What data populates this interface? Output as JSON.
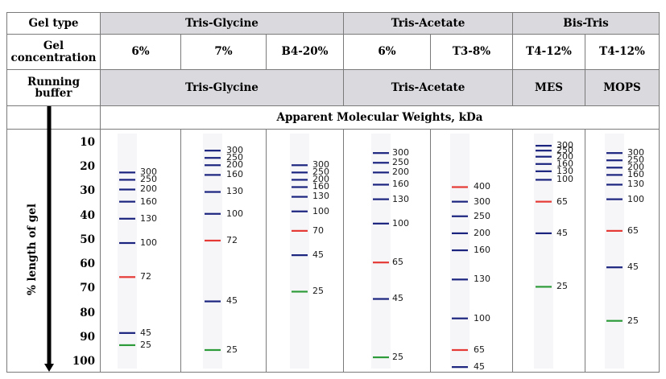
{
  "header": {
    "gel_type_label": "Gel type",
    "gel_conc_label": "Gel\nconcentration",
    "running_buffer_label": "Running\nbuffer",
    "apparent_mw_label": "Apparent Molecular Weights, kDa"
  },
  "gel_types": [
    "Tris-Glycine",
    "Tris-Acetate",
    "Bis-Tris"
  ],
  "columns": [
    {
      "concentration": "6%"
    },
    {
      "concentration": "7%"
    },
    {
      "concentration": "B4-20%"
    },
    {
      "concentration": "6%"
    },
    {
      "concentration": "T3-8%"
    },
    {
      "concentration": "T4-12%"
    },
    {
      "concentration": "T4-12%"
    }
  ],
  "buffers": [
    "Tris-Glycine",
    "Tris-Acetate",
    "MES",
    "MOPS"
  ],
  "colors": {
    "blue": "#1a237e",
    "red": "#e53935",
    "green": "#2e9b3a",
    "header_shade": "#d9d9de",
    "border": "#7a7a7a"
  },
  "chart_data": {
    "type": "gel-ladder",
    "ylabel": "% length of gel",
    "yticks": [
      10,
      20,
      30,
      40,
      50,
      60,
      70,
      80,
      90,
      100
    ],
    "lanes": [
      {
        "gel": "Tris-Glycine 6%",
        "bands": [
          {
            "kda": "300",
            "pos": 22,
            "color": "blue"
          },
          {
            "kda": "250",
            "pos": 25,
            "color": "blue"
          },
          {
            "kda": "200",
            "pos": 29,
            "color": "blue"
          },
          {
            "kda": "160",
            "pos": 34,
            "color": "blue"
          },
          {
            "kda": "130",
            "pos": 41,
            "color": "blue"
          },
          {
            "kda": "100",
            "pos": 51,
            "color": "blue"
          },
          {
            "kda": "72",
            "pos": 65,
            "color": "red"
          },
          {
            "kda": "45",
            "pos": 88,
            "color": "blue"
          },
          {
            "kda": "25",
            "pos": 93,
            "color": "green"
          }
        ]
      },
      {
        "gel": "Tris-Glycine 7%",
        "bands": [
          {
            "kda": "300",
            "pos": 13,
            "color": "blue"
          },
          {
            "kda": "250",
            "pos": 16,
            "color": "blue"
          },
          {
            "kda": "200",
            "pos": 19,
            "color": "blue"
          },
          {
            "kda": "160",
            "pos": 23,
            "color": "blue"
          },
          {
            "kda": "130",
            "pos": 30,
            "color": "blue"
          },
          {
            "kda": "100",
            "pos": 39,
            "color": "blue"
          },
          {
            "kda": "72",
            "pos": 50,
            "color": "red"
          },
          {
            "kda": "45",
            "pos": 75,
            "color": "blue"
          },
          {
            "kda": "25",
            "pos": 95,
            "color": "green"
          }
        ]
      },
      {
        "gel": "Tris-Glycine B4-20%",
        "bands": [
          {
            "kda": "300",
            "pos": 19,
            "color": "blue"
          },
          {
            "kda": "250",
            "pos": 22,
            "color": "blue"
          },
          {
            "kda": "200",
            "pos": 25,
            "color": "blue"
          },
          {
            "kda": "160",
            "pos": 28,
            "color": "blue"
          },
          {
            "kda": "130",
            "pos": 32,
            "color": "blue"
          },
          {
            "kda": "100",
            "pos": 38,
            "color": "blue"
          },
          {
            "kda": "70",
            "pos": 46,
            "color": "red"
          },
          {
            "kda": "45",
            "pos": 56,
            "color": "blue"
          },
          {
            "kda": "25",
            "pos": 71,
            "color": "green"
          }
        ]
      },
      {
        "gel": "Tris-Acetate 6%",
        "bands": [
          {
            "kda": "300",
            "pos": 14,
            "color": "blue"
          },
          {
            "kda": "250",
            "pos": 18,
            "color": "blue"
          },
          {
            "kda": "200",
            "pos": 22,
            "color": "blue"
          },
          {
            "kda": "160",
            "pos": 27,
            "color": "blue"
          },
          {
            "kda": "130",
            "pos": 33,
            "color": "blue"
          },
          {
            "kda": "100",
            "pos": 43,
            "color": "blue"
          },
          {
            "kda": "65",
            "pos": 59,
            "color": "red"
          },
          {
            "kda": "45",
            "pos": 74,
            "color": "blue"
          },
          {
            "kda": "25",
            "pos": 98,
            "color": "green"
          }
        ]
      },
      {
        "gel": "Tris-Acetate T3-8%",
        "bands": [
          {
            "kda": "400",
            "pos": 28,
            "color": "red"
          },
          {
            "kda": "300",
            "pos": 34,
            "color": "blue"
          },
          {
            "kda": "250",
            "pos": 40,
            "color": "blue"
          },
          {
            "kda": "200",
            "pos": 47,
            "color": "blue"
          },
          {
            "kda": "160",
            "pos": 54,
            "color": "blue"
          },
          {
            "kda": "130",
            "pos": 66,
            "color": "blue"
          },
          {
            "kda": "100",
            "pos": 82,
            "color": "blue"
          },
          {
            "kda": "65",
            "pos": 95,
            "color": "red"
          },
          {
            "kda": "45",
            "pos": 102,
            "color": "blue"
          }
        ]
      },
      {
        "gel": "Bis-Tris T4-12% MES",
        "bands": [
          {
            "kda": "300",
            "pos": 11,
            "color": "blue"
          },
          {
            "kda": "250",
            "pos": 13,
            "color": "blue"
          },
          {
            "kda": "200",
            "pos": 15.5,
            "color": "blue"
          },
          {
            "kda": "160",
            "pos": 18.5,
            "color": "blue"
          },
          {
            "kda": "130",
            "pos": 21.5,
            "color": "blue"
          },
          {
            "kda": "100",
            "pos": 25,
            "color": "blue"
          },
          {
            "kda": "65",
            "pos": 34,
            "color": "red"
          },
          {
            "kda": "45",
            "pos": 47,
            "color": "blue"
          },
          {
            "kda": "25",
            "pos": 69,
            "color": "green"
          }
        ]
      },
      {
        "gel": "Bis-Tris T4-12% MOPS",
        "bands": [
          {
            "kda": "300",
            "pos": 14,
            "color": "blue"
          },
          {
            "kda": "250",
            "pos": 17,
            "color": "blue"
          },
          {
            "kda": "200",
            "pos": 20,
            "color": "blue"
          },
          {
            "kda": "160",
            "pos": 23,
            "color": "blue"
          },
          {
            "kda": "130",
            "pos": 27,
            "color": "blue"
          },
          {
            "kda": "100",
            "pos": 33,
            "color": "blue"
          },
          {
            "kda": "65",
            "pos": 46,
            "color": "red"
          },
          {
            "kda": "45",
            "pos": 61,
            "color": "blue"
          },
          {
            "kda": "25",
            "pos": 83,
            "color": "green"
          }
        ]
      }
    ]
  }
}
